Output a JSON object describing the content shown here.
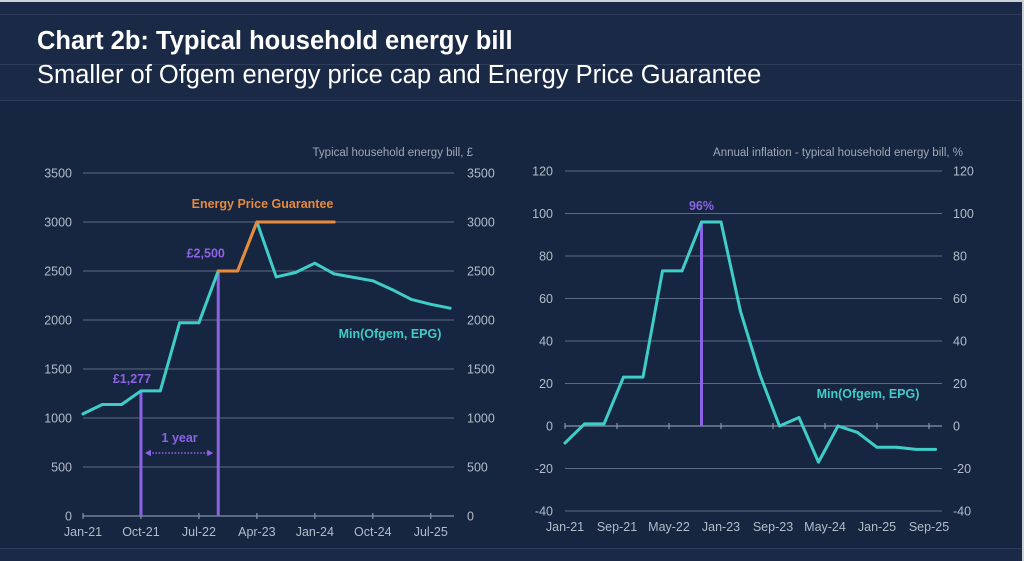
{
  "header": {
    "title": "Chart 2b: Typical household energy bill",
    "subtitle": "Smaller of Ofgem energy price cap and Energy Price Guarantee"
  },
  "colors": {
    "background": "#172640",
    "min_series": "#3fcdc7",
    "epg_series": "#e9893a",
    "annotation": "#8c62e6",
    "gridline": "#5c6b84",
    "tick_text": "#b3bbc9"
  },
  "chart_data": [
    {
      "type": "line",
      "axis_title": "Typical household energy bill, £",
      "xlabel": "",
      "ylabel": "Typical household energy bill, £",
      "ylim": [
        0,
        3500
      ],
      "yticks": [
        0,
        500,
        1000,
        1500,
        2000,
        2500,
        3000,
        3500
      ],
      "xticks": [
        "Jan-21",
        "Oct-21",
        "Jul-22",
        "Apr-23",
        "Jan-24",
        "Oct-24",
        "Jul-25"
      ],
      "dual_y_axis": true,
      "grid": true,
      "legend": "inline labels",
      "series": [
        {
          "name": "Min(Ofgem, EPG)",
          "color": "#3fcdc7",
          "x": [
            "Jan-21",
            "Apr-21",
            "Jul-21",
            "Oct-21",
            "Jan-22",
            "Apr-22",
            "Jul-22",
            "Oct-22",
            "Jan-23",
            "Apr-23",
            "Jul-23",
            "Oct-23",
            "Jan-24",
            "Apr-24",
            "Jul-24",
            "Oct-24",
            "Jan-25",
            "Apr-25",
            "Jul-25",
            "Oct-25"
          ],
          "values": [
            1042,
            1138,
            1138,
            1277,
            1277,
            1971,
            1971,
            2500,
            2500,
            3000,
            2440,
            2485,
            2580,
            2470,
            2435,
            2400,
            2310,
            2210,
            2160,
            2120
          ]
        },
        {
          "name": "Energy Price Guarantee",
          "color": "#e9893a",
          "x": [
            "Oct-22",
            "Jan-23",
            "Apr-23",
            "Jul-23",
            "Oct-23",
            "Jan-24",
            "Apr-24"
          ],
          "values": [
            2500,
            2500,
            3000,
            3000,
            3000,
            3000,
            3000
          ]
        }
      ],
      "annotations": [
        {
          "type": "vline",
          "x": "Oct-21",
          "y": 1277,
          "label": "£1,277"
        },
        {
          "type": "vline",
          "x": "Oct-22",
          "y": 2500,
          "label": "£2,500"
        },
        {
          "type": "span",
          "from": "Oct-21",
          "to": "Oct-22",
          "label": "1 year"
        }
      ]
    },
    {
      "type": "line",
      "axis_title": "Annual inflation - typical household energy bill, %",
      "xlabel": "",
      "ylabel": "Annual inflation - typical household energy bill, %",
      "ylim": [
        -40,
        120
      ],
      "yticks": [
        -40,
        -20,
        0,
        20,
        40,
        60,
        80,
        100,
        120
      ],
      "xticks": [
        "Jan-21",
        "Sep-21",
        "May-22",
        "Jan-23",
        "Sep-23",
        "May-24",
        "Jan-25",
        "Sep-25"
      ],
      "dual_y_axis": true,
      "grid": true,
      "legend": "inline labels",
      "series": [
        {
          "name": "Min(Ofgem, EPG)",
          "color": "#3fcdc7",
          "x": [
            "Jan-21",
            "Apr-21",
            "Jul-21",
            "Oct-21",
            "Jan-22",
            "Apr-22",
            "Jul-22",
            "Oct-22",
            "Jan-23",
            "Apr-23",
            "Jul-23",
            "Oct-23",
            "Jan-24",
            "Apr-24",
            "Jul-24",
            "Oct-24",
            "Jan-25",
            "Apr-25",
            "Jul-25",
            "Oct-25"
          ],
          "values": [
            -8,
            1,
            1,
            23,
            23,
            73,
            73,
            96,
            96,
            54,
            24,
            0,
            4,
            -17,
            0,
            -3,
            -10,
            -10,
            -11,
            -11
          ]
        }
      ],
      "annotations": [
        {
          "type": "vline",
          "x": "Oct-22",
          "y": 96,
          "label": "96%"
        }
      ]
    }
  ]
}
